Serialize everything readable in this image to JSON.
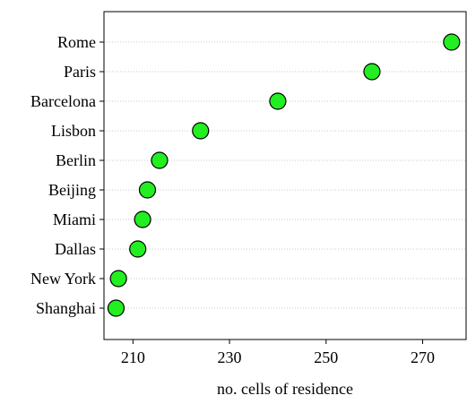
{
  "chart_data": {
    "type": "scatter",
    "title": "",
    "xlabel": "no. cells of residence",
    "ylabel": "",
    "categories": [
      "Rome",
      "Paris",
      "Barcelona",
      "Lisbon",
      "Berlin",
      "Beijing",
      "Miami",
      "Dallas",
      "New York",
      "Shanghai"
    ],
    "values": [
      276,
      259.5,
      240,
      224,
      215.5,
      213,
      212,
      211,
      207,
      206.5
    ],
    "xlim": [
      204,
      279
    ],
    "xticks": [
      210,
      230,
      250,
      270
    ],
    "grid": "horizontal-dotted",
    "marker_color": "#22ee22",
    "marker_edge_color": "#000000"
  }
}
